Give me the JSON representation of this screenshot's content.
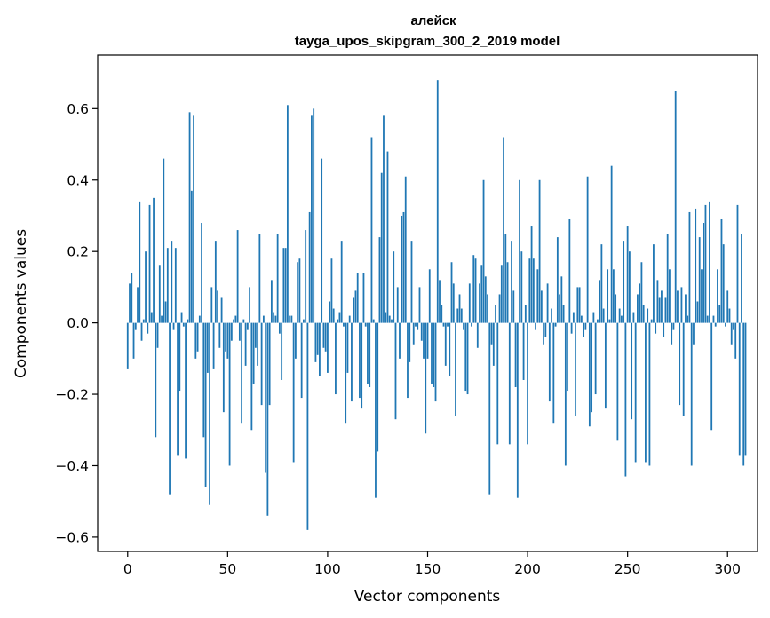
{
  "chart_data": {
    "type": "bar",
    "title": "алейск",
    "subtitle": "tayga_upos_skipgram_300_2_2019 model",
    "xlabel": "Vector components",
    "ylabel": "Components values",
    "xlim": [
      -15,
      315
    ],
    "ylim": [
      -0.64,
      0.75
    ],
    "xticks": [
      0,
      50,
      100,
      150,
      200,
      250,
      300
    ],
    "xtick_labels": [
      "0",
      "50",
      "100",
      "150",
      "200",
      "250",
      "300"
    ],
    "yticks": [
      -0.6,
      -0.4,
      -0.2,
      0.0,
      0.2,
      0.4,
      0.6
    ],
    "ytick_labels": [
      "−0.6",
      "−0.4",
      "−0.2",
      "0.0",
      "0.2",
      "0.4",
      "0.6"
    ],
    "grid": false,
    "bar_color": "#1f77b4",
    "values": [
      -0.13,
      0.11,
      0.14,
      -0.1,
      -0.02,
      0.1,
      0.34,
      -0.05,
      0.01,
      0.2,
      -0.03,
      0.33,
      0.03,
      0.35,
      -0.32,
      -0.07,
      0.16,
      0.02,
      0.46,
      0.06,
      0.21,
      -0.48,
      0.23,
      -0.02,
      0.21,
      -0.37,
      -0.19,
      0.03,
      -0.01,
      -0.38,
      0.01,
      0.59,
      0.37,
      0.58,
      -0.1,
      -0.08,
      0.02,
      0.28,
      -0.32,
      -0.46,
      -0.14,
      -0.51,
      0.1,
      -0.13,
      0.23,
      0.09,
      -0.07,
      0.07,
      -0.25,
      -0.08,
      -0.1,
      -0.4,
      -0.05,
      0.01,
      0.02,
      0.26,
      -0.05,
      -0.28,
      0.01,
      -0.12,
      -0.02,
      0.1,
      -0.3,
      -0.17,
      -0.07,
      -0.12,
      0.25,
      -0.23,
      0.02,
      -0.42,
      -0.54,
      -0.23,
      0.12,
      0.03,
      0.02,
      0.25,
      -0.03,
      -0.16,
      0.21,
      0.21,
      0.61,
      0.02,
      0.02,
      -0.39,
      -0.1,
      0.17,
      0.18,
      -0.21,
      0.01,
      0.26,
      -0.58,
      0.31,
      0.58,
      0.6,
      -0.11,
      -0.09,
      -0.15,
      0.46,
      -0.07,
      -0.08,
      -0.14,
      0.06,
      0.18,
      0.04,
      -0.2,
      0.01,
      0.03,
      0.23,
      -0.01,
      -0.28,
      -0.14,
      0.02,
      -0.22,
      0.07,
      0.09,
      0.14,
      -0.21,
      -0.24,
      0.14,
      -0.01,
      -0.17,
      -0.18,
      0.52,
      0.01,
      -0.49,
      -0.36,
      0.24,
      0.42,
      0.58,
      0.03,
      0.48,
      0.02,
      0.01,
      0.2,
      -0.27,
      0.1,
      -0.1,
      0.3,
      0.31,
      0.41,
      -0.21,
      -0.11,
      0.23,
      -0.06,
      -0.01,
      -0.02,
      0.1,
      -0.05,
      -0.1,
      -0.31,
      -0.1,
      0.15,
      -0.17,
      -0.18,
      -0.22,
      0.68,
      0.12,
      0.05,
      -0.01,
      -0.12,
      -0.01,
      -0.15,
      0.17,
      0.11,
      -0.26,
      0.04,
      0.08,
      0.04,
      -0.02,
      -0.19,
      -0.2,
      0.11,
      -0.01,
      0.19,
      0.18,
      -0.07,
      0.11,
      0.16,
      0.4,
      0.13,
      0.08,
      -0.48,
      -0.06,
      -0.12,
      0.05,
      -0.34,
      0.08,
      0.16,
      0.52,
      0.25,
      0.17,
      -0.34,
      0.23,
      0.09,
      -0.18,
      -0.49,
      0.4,
      0.2,
      -0.16,
      0.05,
      -0.34,
      0.18,
      0.27,
      0.18,
      -0.02,
      0.15,
      0.4,
      0.09,
      -0.06,
      -0.04,
      0.11,
      -0.22,
      0.04,
      -0.28,
      -0.01,
      0.24,
      0.08,
      0.13,
      0.05,
      -0.4,
      -0.19,
      0.29,
      -0.03,
      0.03,
      -0.26,
      0.1,
      0.1,
      0.02,
      -0.04,
      -0.02,
      0.41,
      -0.29,
      -0.25,
      0.03,
      -0.2,
      0.01,
      0.12,
      0.22,
      0.04,
      -0.24,
      0.15,
      0.01,
      0.44,
      0.15,
      0.08,
      -0.33,
      0.04,
      0.02,
      0.23,
      -0.43,
      0.27,
      0.2,
      -0.27,
      0.03,
      -0.39,
      0.08,
      0.11,
      0.17,
      0.05,
      -0.39,
      0.04,
      -0.4,
      0.01,
      0.22,
      -0.03,
      0.12,
      0.07,
      0.09,
      -0.04,
      0.07,
      0.25,
      0.15,
      -0.06,
      -0.02,
      0.65,
      0.09,
      -0.23,
      0.1,
      -0.26,
      0.08,
      0.02,
      0.31,
      -0.4,
      -0.06,
      0.32,
      0.06,
      0.24,
      0.15,
      0.28,
      0.33,
      0.02,
      0.34,
      -0.3,
      0.02,
      -0.01,
      0.15,
      0.05,
      0.29,
      0.22,
      -0.01,
      0.09,
      0.04,
      -0.06,
      -0.02,
      -0.1,
      0.33,
      -0.37,
      0.25,
      -0.4,
      -0.37
    ]
  }
}
